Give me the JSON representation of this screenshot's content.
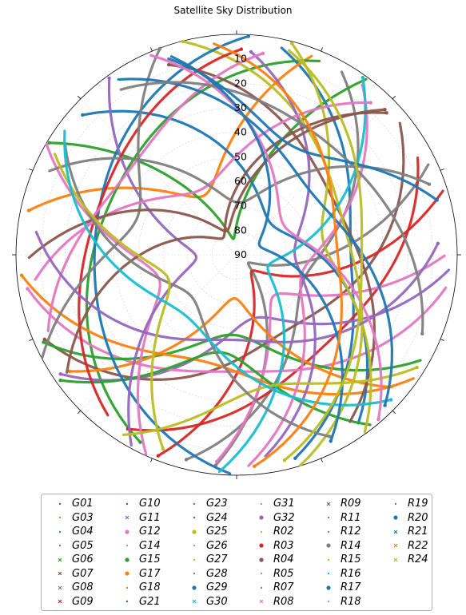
{
  "title": "Satellite Sky Distribution",
  "colors": [
    "#1f77b4",
    "#ff7f0e",
    "#2ca02c",
    "#d62728",
    "#9467bd",
    "#8c564b",
    "#e377c2",
    "#7f7f7f",
    "#bcbd22",
    "#17becf"
  ],
  "chart_data": {
    "type": "scatter",
    "projection": "polar",
    "radial_axis": "elevation",
    "r_ticks": [
      "90",
      "80",
      "70",
      "60",
      "50",
      "40",
      "30",
      "20",
      "10"
    ],
    "r_range": [
      0,
      90
    ],
    "r_direction": "reversed (90 at center)",
    "grid": true,
    "legend_position": "bottom",
    "legend_columns": 6,
    "series": [
      {
        "name": "G01",
        "color": "#1f77b4",
        "marker": "."
      },
      {
        "name": "G03",
        "color": "#ff7f0e",
        "marker": "."
      },
      {
        "name": "G04",
        "color": "#2ca02c",
        "marker": "."
      },
      {
        "name": "G05",
        "color": "#7f7f7f",
        "marker": "."
      },
      {
        "name": "G06",
        "color": "#2ca02c",
        "marker": "x"
      },
      {
        "name": "G07",
        "color": "#8c564b",
        "marker": "x"
      },
      {
        "name": "G08",
        "color": "#7f7f7f",
        "marker": "x"
      },
      {
        "name": "G09",
        "color": "#d62728",
        "marker": "x"
      },
      {
        "name": "G10",
        "color": "#d62728",
        "marker": "."
      },
      {
        "name": "G11",
        "color": "#9467bd",
        "marker": "x"
      },
      {
        "name": "G12",
        "color": "#e377c2",
        "marker": "o"
      },
      {
        "name": "G14",
        "color": "#e377c2",
        "marker": "."
      },
      {
        "name": "G15",
        "color": "#2ca02c",
        "marker": "o"
      },
      {
        "name": "G17",
        "color": "#ff7f0e",
        "marker": "o"
      },
      {
        "name": "G18",
        "color": "#ff7f0e",
        "marker": "."
      },
      {
        "name": "G21",
        "color": "#1f77b4",
        "marker": "."
      },
      {
        "name": "G23",
        "color": "#2ca02c",
        "marker": "."
      },
      {
        "name": "G24",
        "color": "#8c564b",
        "marker": "."
      },
      {
        "name": "G25",
        "color": "#bcbd22",
        "marker": "o"
      },
      {
        "name": "G26",
        "color": "#e377c2",
        "marker": "."
      },
      {
        "name": "G27",
        "color": "#bcbd22",
        "marker": "."
      },
      {
        "name": "G28",
        "color": "#9467bd",
        "marker": "."
      },
      {
        "name": "G29",
        "color": "#1f77b4",
        "marker": "o"
      },
      {
        "name": "G30",
        "color": "#17becf",
        "marker": "x"
      },
      {
        "name": "G31",
        "color": "#e377c2",
        "marker": "."
      },
      {
        "name": "G32",
        "color": "#9467bd",
        "marker": "o"
      },
      {
        "name": "R02",
        "color": "#bcbd22",
        "marker": "."
      },
      {
        "name": "R03",
        "color": "#d62728",
        "marker": "o"
      },
      {
        "name": "R04",
        "color": "#8c564b",
        "marker": "o"
      },
      {
        "name": "R05",
        "color": "#e377c2",
        "marker": "."
      },
      {
        "name": "R07",
        "color": "#7f7f7f",
        "marker": "."
      },
      {
        "name": "R08",
        "color": "#e377c2",
        "marker": "x"
      },
      {
        "name": "R09",
        "color": "#8c564b",
        "marker": "x"
      },
      {
        "name": "R11",
        "color": "#9467bd",
        "marker": "."
      },
      {
        "name": "R12",
        "color": "#7f7f7f",
        "marker": "."
      },
      {
        "name": "R14",
        "color": "#7f7f7f",
        "marker": "o"
      },
      {
        "name": "R15",
        "color": "#bcbd22",
        "marker": "."
      },
      {
        "name": "R16",
        "color": "#17becf",
        "marker": "."
      },
      {
        "name": "R17",
        "color": "#1f77b4",
        "marker": "o"
      },
      {
        "name": "R18",
        "color": "#e377c2",
        "marker": "."
      },
      {
        "name": "R19",
        "color": "#7f7f7f",
        "marker": "."
      },
      {
        "name": "R20",
        "color": "#1f77b4",
        "marker": "o"
      },
      {
        "name": "R21",
        "color": "#1f77b4",
        "marker": "x"
      },
      {
        "name": "R22",
        "color": "#ff7f0e",
        "marker": "x"
      },
      {
        "name": "R24",
        "color": "#bcbd22",
        "marker": "x"
      }
    ]
  }
}
